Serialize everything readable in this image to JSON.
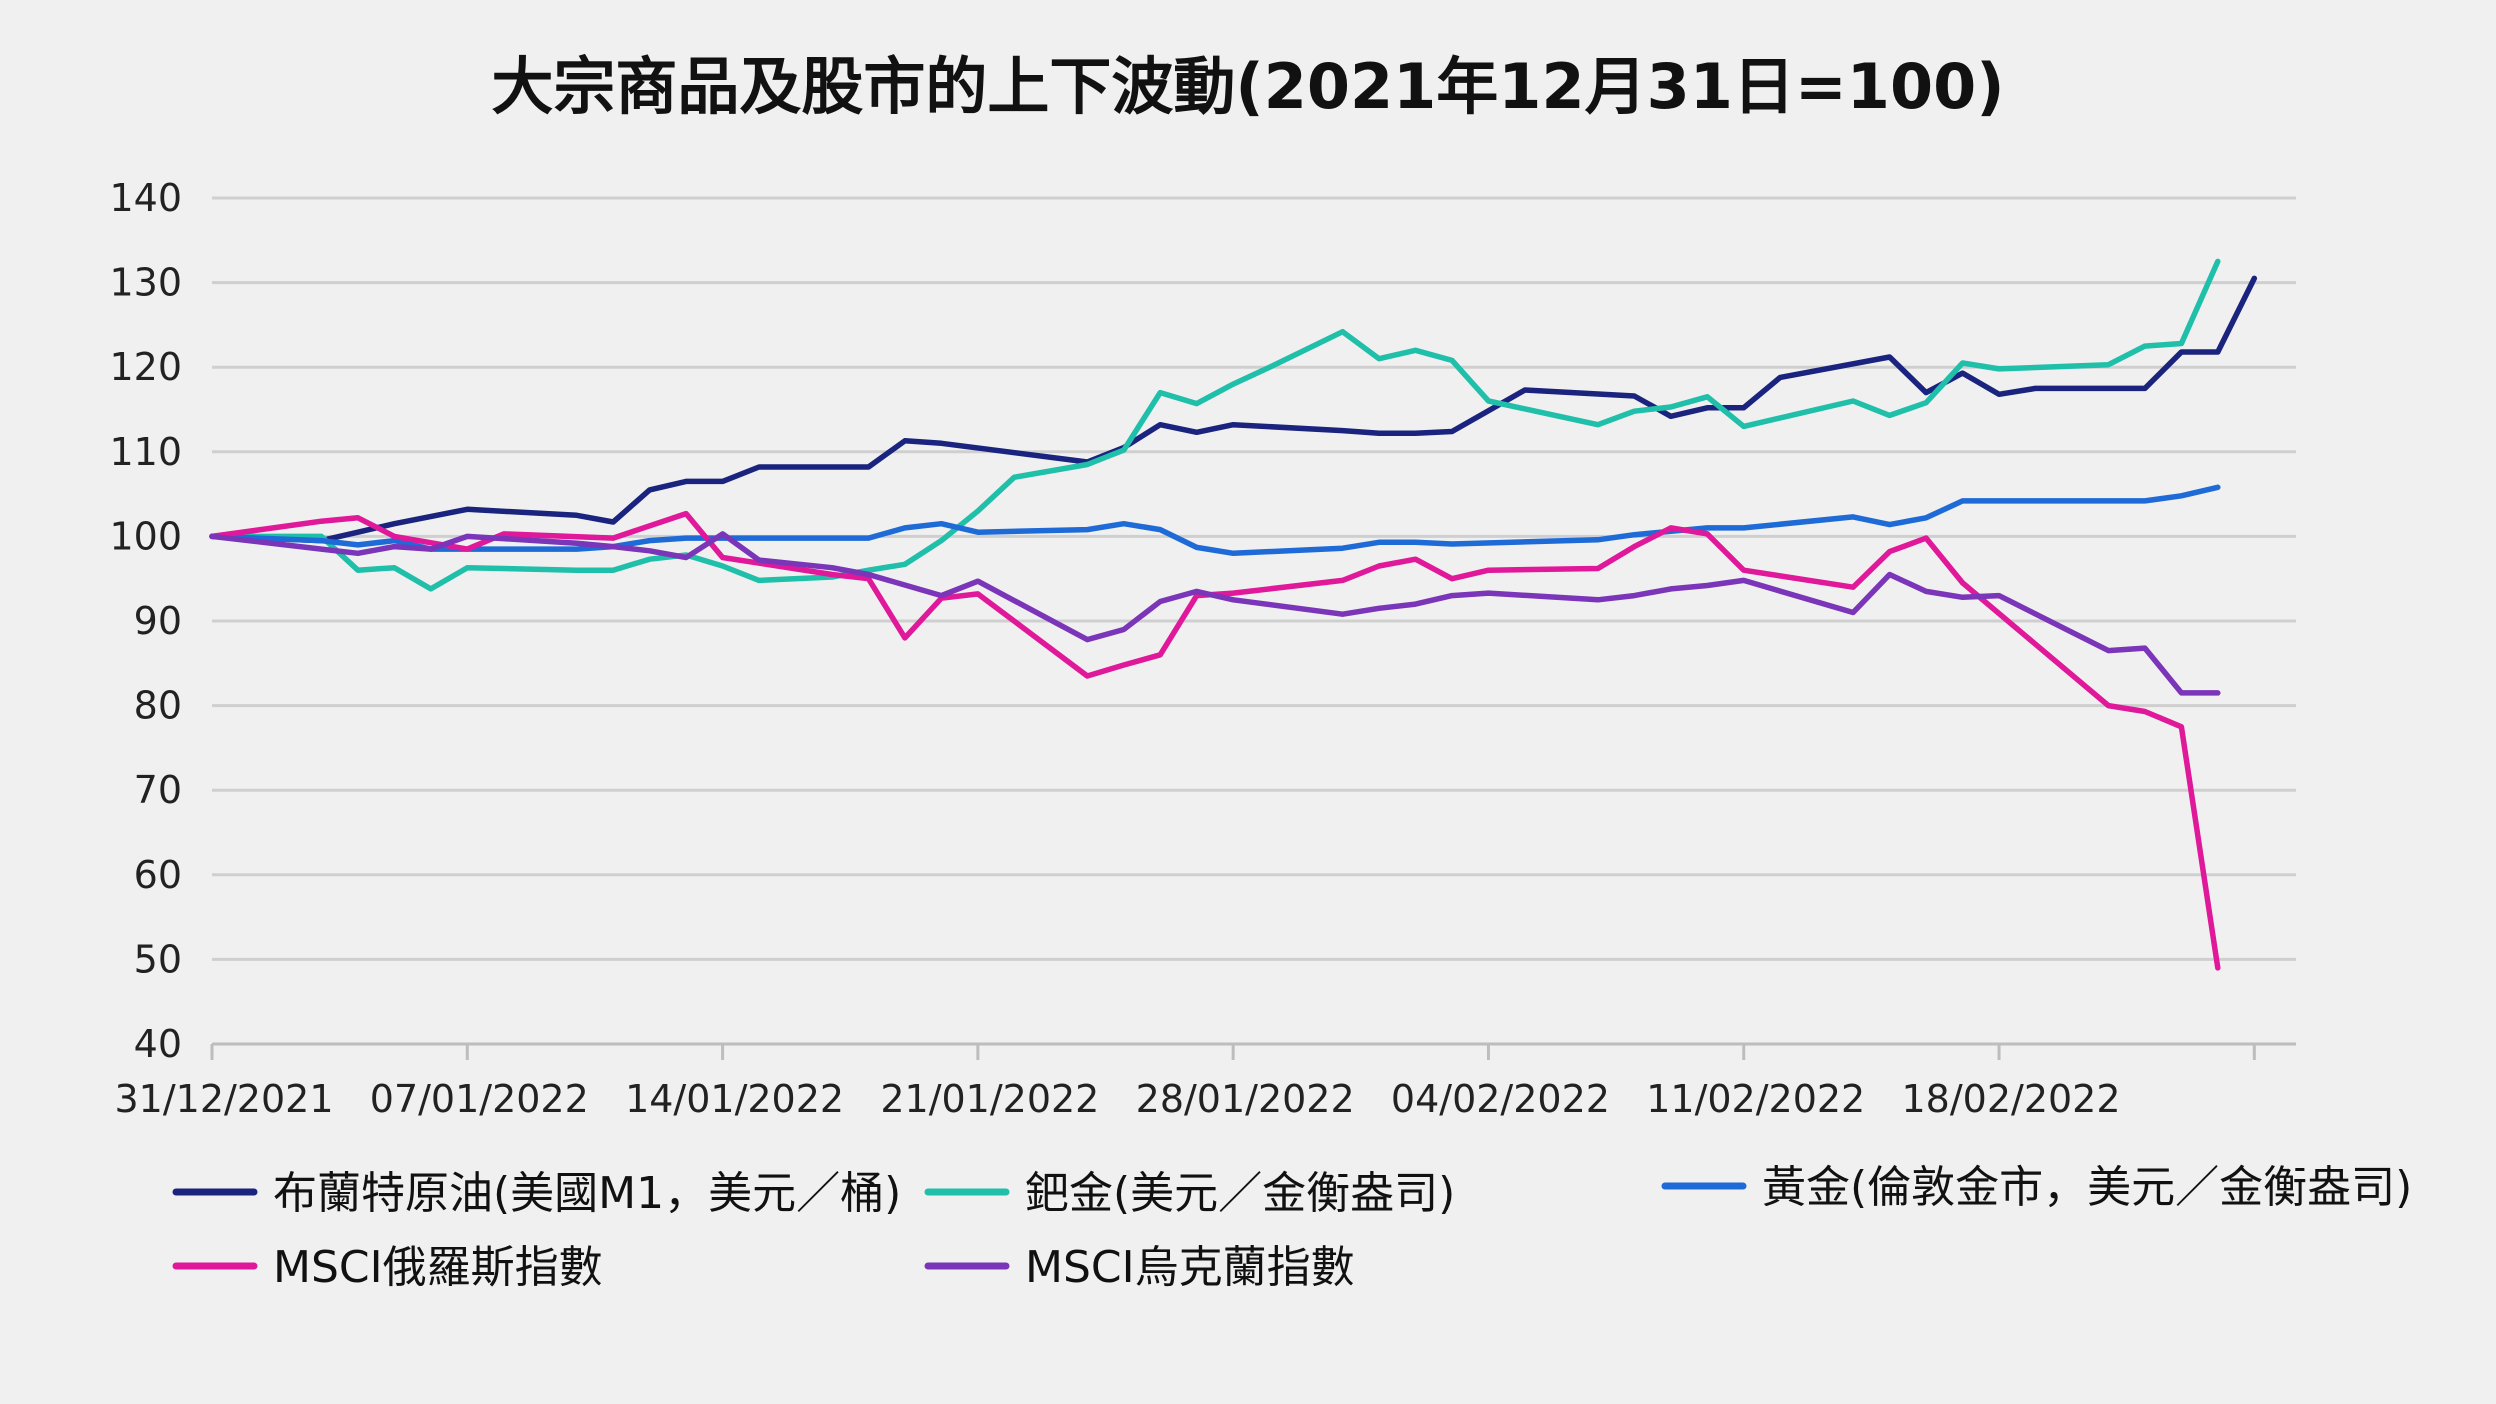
{
  "chart_data": {
    "type": "line",
    "title": "大宗商品及股市的上下波動(2021年12月31日=100)",
    "ylim": [
      40,
      140
    ],
    "yticks": [
      140,
      130,
      120,
      110,
      100,
      90,
      80,
      70,
      60,
      50,
      40
    ],
    "x_start": "2021-12-31",
    "xticks": [
      {
        "label": "31/12/2021",
        "date": "2021-12-31"
      },
      {
        "label": "07/01/2022",
        "date": "2022-01-07"
      },
      {
        "label": "14/01/2022",
        "date": "2022-01-14"
      },
      {
        "label": "21/01/2022",
        "date": "2022-01-21"
      },
      {
        "label": "28/01/2022",
        "date": "2022-01-28"
      },
      {
        "label": "04/02/2022",
        "date": "2022-02-04"
      },
      {
        "label": "11/02/2022",
        "date": "2022-02-11"
      },
      {
        "label": "18/02/2022",
        "date": "2022-02-18"
      }
    ],
    "grid": true,
    "legend_position": "bottom",
    "series": [
      {
        "name": "布蘭特原油(美國M1，美元／桶)",
        "color": "#1a237e",
        "points": [
          [
            "2021-12-31",
            100
          ],
          [
            "2022-01-03",
            99.5
          ],
          [
            "2022-01-04",
            100.5
          ],
          [
            "2022-01-05",
            101.5
          ],
          [
            "2022-01-07",
            103.2
          ],
          [
            "2022-01-10",
            102.5
          ],
          [
            "2022-01-11",
            101.7
          ],
          [
            "2022-01-12",
            105.5
          ],
          [
            "2022-01-13",
            106.5
          ],
          [
            "2022-01-14",
            106.5
          ],
          [
            "2022-01-15",
            108.2
          ],
          [
            "2022-01-17",
            108.2
          ],
          [
            "2022-01-18",
            108.2
          ],
          [
            "2022-01-19",
            111.3
          ],
          [
            "2022-01-20",
            111
          ],
          [
            "2022-01-24",
            108.8
          ],
          [
            "2022-01-25",
            110.5
          ],
          [
            "2022-01-26",
            113.2
          ],
          [
            "2022-01-27",
            112.3
          ],
          [
            "2022-01-28",
            113.2
          ],
          [
            "2022-01-31",
            112.5
          ],
          [
            "2022-02-01",
            112.2
          ],
          [
            "2022-02-02",
            112.2
          ],
          [
            "2022-02-03",
            112.4
          ],
          [
            "2022-02-05",
            117.3
          ],
          [
            "2022-02-08",
            116.6
          ],
          [
            "2022-02-09",
            114.2
          ],
          [
            "2022-02-10",
            115.2
          ],
          [
            "2022-02-11",
            115.2
          ],
          [
            "2022-02-12",
            118.8
          ],
          [
            "2022-02-15",
            121.2
          ],
          [
            "2022-02-16",
            117
          ],
          [
            "2022-02-17",
            119.3
          ],
          [
            "2022-02-18",
            116.8
          ],
          [
            "2022-02-19",
            117.5
          ],
          [
            "2022-02-22",
            117.5
          ],
          [
            "2022-02-23",
            121.8
          ],
          [
            "2022-02-24",
            121.8
          ],
          [
            "2022-02-25",
            130.5
          ]
        ]
      },
      {
        "name": "鈀金(美元／金衡盎司)",
        "color": "#1fbfa9",
        "points": [
          [
            "2021-12-31",
            100
          ],
          [
            "2022-01-03",
            100
          ],
          [
            "2022-01-04",
            96
          ],
          [
            "2022-01-05",
            96.3
          ],
          [
            "2022-01-06",
            93.8
          ],
          [
            "2022-01-07",
            96.3
          ],
          [
            "2022-01-10",
            96
          ],
          [
            "2022-01-11",
            96
          ],
          [
            "2022-01-12",
            97.3
          ],
          [
            "2022-01-13",
            97.8
          ],
          [
            "2022-01-14",
            96.5
          ],
          [
            "2022-01-15",
            94.8
          ],
          [
            "2022-01-17",
            95.2
          ],
          [
            "2022-01-18",
            96
          ],
          [
            "2022-01-19",
            96.7
          ],
          [
            "2022-01-20",
            99.5
          ],
          [
            "2022-01-21",
            103
          ],
          [
            "2022-01-22",
            107
          ],
          [
            "2022-01-24",
            108.5
          ],
          [
            "2022-01-25",
            110.2
          ],
          [
            "2022-01-26",
            117
          ],
          [
            "2022-01-27",
            115.7
          ],
          [
            "2022-01-28",
            118
          ],
          [
            "2022-01-29",
            120
          ],
          [
            "2022-01-31",
            124.2
          ],
          [
            "2022-02-01",
            121
          ],
          [
            "2022-02-02",
            122
          ],
          [
            "2022-02-03",
            120.8
          ],
          [
            "2022-02-04",
            116
          ],
          [
            "2022-02-07",
            113.2
          ],
          [
            "2022-02-08",
            114.8
          ],
          [
            "2022-02-09",
            115.3
          ],
          [
            "2022-02-10",
            116.5
          ],
          [
            "2022-02-11",
            113
          ],
          [
            "2022-02-14",
            116
          ],
          [
            "2022-02-15",
            114.3
          ],
          [
            "2022-02-16",
            115.8
          ],
          [
            "2022-02-17",
            120.5
          ],
          [
            "2022-02-18",
            119.8
          ],
          [
            "2022-02-21",
            120.3
          ],
          [
            "2022-02-22",
            122.5
          ],
          [
            "2022-02-23",
            122.8
          ],
          [
            "2022-02-24",
            132.5
          ]
        ]
      },
      {
        "name": "黃金(倫敦金市，美元／金衡盎司)",
        "color": "#1e6ad6",
        "points": [
          [
            "2021-12-31",
            100
          ],
          [
            "2022-01-03",
            99.5
          ],
          [
            "2022-01-04",
            99
          ],
          [
            "2022-01-05",
            99.5
          ],
          [
            "2022-01-06",
            98.5
          ],
          [
            "2022-01-07",
            98.5
          ],
          [
            "2022-01-10",
            98.5
          ],
          [
            "2022-01-11",
            98.8
          ],
          [
            "2022-01-12",
            99.5
          ],
          [
            "2022-01-13",
            99.8
          ],
          [
            "2022-01-14",
            99.8
          ],
          [
            "2022-01-17",
            99.8
          ],
          [
            "2022-01-18",
            99.8
          ],
          [
            "2022-01-19",
            101
          ],
          [
            "2022-01-20",
            101.5
          ],
          [
            "2022-01-21",
            100.5
          ],
          [
            "2022-01-24",
            100.8
          ],
          [
            "2022-01-25",
            101.5
          ],
          [
            "2022-01-26",
            100.8
          ],
          [
            "2022-01-27",
            98.7
          ],
          [
            "2022-01-28",
            98
          ],
          [
            "2022-01-31",
            98.6
          ],
          [
            "2022-02-01",
            99.3
          ],
          [
            "2022-02-02",
            99.3
          ],
          [
            "2022-02-03",
            99.1
          ],
          [
            "2022-02-07",
            99.6
          ],
          [
            "2022-02-08",
            100.2
          ],
          [
            "2022-02-10",
            101
          ],
          [
            "2022-02-11",
            101
          ],
          [
            "2022-02-14",
            102.3
          ],
          [
            "2022-02-15",
            101.4
          ],
          [
            "2022-02-16",
            102.2
          ],
          [
            "2022-02-17",
            104.2
          ],
          [
            "2022-02-18",
            104.2
          ],
          [
            "2022-02-21",
            104.2
          ],
          [
            "2022-02-22",
            104.2
          ],
          [
            "2022-02-23",
            104.8
          ],
          [
            "2022-02-24",
            105.8
          ]
        ]
      },
      {
        "name": "MSCI俄羅斯指數",
        "color": "#e0189a",
        "points": [
          [
            "2021-12-31",
            100
          ],
          [
            "2022-01-03",
            101.8
          ],
          [
            "2022-01-04",
            102.2
          ],
          [
            "2022-01-05",
            100
          ],
          [
            "2022-01-07",
            98.5
          ],
          [
            "2022-01-08",
            100.3
          ],
          [
            "2022-01-11",
            99.8
          ],
          [
            "2022-01-13",
            102.7
          ],
          [
            "2022-01-14",
            97.5
          ],
          [
            "2022-01-17",
            95.5
          ],
          [
            "2022-01-18",
            95
          ],
          [
            "2022-01-19",
            88
          ],
          [
            "2022-01-20",
            92.7
          ],
          [
            "2022-01-21",
            93.2
          ],
          [
            "2022-01-24",
            83.5
          ],
          [
            "2022-01-25",
            84.8
          ],
          [
            "2022-01-26",
            86
          ],
          [
            "2022-01-27",
            93
          ],
          [
            "2022-01-28",
            93.3
          ],
          [
            "2022-01-31",
            94.8
          ],
          [
            "2022-02-01",
            96.5
          ],
          [
            "2022-02-02",
            97.3
          ],
          [
            "2022-02-03",
            95
          ],
          [
            "2022-02-04",
            96
          ],
          [
            "2022-02-07",
            96.2
          ],
          [
            "2022-02-08",
            98.8
          ],
          [
            "2022-02-09",
            101
          ],
          [
            "2022-02-10",
            100.3
          ],
          [
            "2022-02-11",
            96
          ],
          [
            "2022-02-14",
            94
          ],
          [
            "2022-02-15",
            98.2
          ],
          [
            "2022-02-16",
            99.8
          ],
          [
            "2022-02-17",
            94.5
          ],
          [
            "2022-02-21",
            80
          ],
          [
            "2022-02-22",
            79.3
          ],
          [
            "2022-02-23",
            77.5
          ],
          [
            "2022-02-24",
            49
          ]
        ]
      },
      {
        "name": "MSCI烏克蘭指數",
        "color": "#7a35b8",
        "points": [
          [
            "2021-12-31",
            100
          ],
          [
            "2022-01-03",
            98.5
          ],
          [
            "2022-01-04",
            98
          ],
          [
            "2022-01-05",
            98.8
          ],
          [
            "2022-01-06",
            98.5
          ],
          [
            "2022-01-07",
            100
          ],
          [
            "2022-01-10",
            99.2
          ],
          [
            "2022-01-11",
            98.8
          ],
          [
            "2022-01-12",
            98.3
          ],
          [
            "2022-01-13",
            97.5
          ],
          [
            "2022-01-14",
            100.3
          ],
          [
            "2022-01-15",
            97.2
          ],
          [
            "2022-01-17",
            96.3
          ],
          [
            "2022-01-18",
            95.5
          ],
          [
            "2022-01-20",
            93
          ],
          [
            "2022-01-21",
            94.7
          ],
          [
            "2022-01-24",
            87.8
          ],
          [
            "2022-01-25",
            89
          ],
          [
            "2022-01-26",
            92.3
          ],
          [
            "2022-01-27",
            93.5
          ],
          [
            "2022-01-28",
            92.5
          ],
          [
            "2022-01-31",
            90.8
          ],
          [
            "2022-02-01",
            91.5
          ],
          [
            "2022-02-02",
            92
          ],
          [
            "2022-02-03",
            93
          ],
          [
            "2022-02-04",
            93.3
          ],
          [
            "2022-02-07",
            92.5
          ],
          [
            "2022-02-08",
            93
          ],
          [
            "2022-02-09",
            93.8
          ],
          [
            "2022-02-10",
            94.2
          ],
          [
            "2022-02-11",
            94.8
          ],
          [
            "2022-02-14",
            91
          ],
          [
            "2022-02-15",
            95.5
          ],
          [
            "2022-02-16",
            93.5
          ],
          [
            "2022-02-17",
            92.8
          ],
          [
            "2022-02-18",
            93
          ],
          [
            "2022-02-21",
            86.5
          ],
          [
            "2022-02-22",
            86.8
          ],
          [
            "2022-02-23",
            81.5
          ],
          [
            "2022-02-24",
            81.5
          ]
        ]
      }
    ]
  }
}
